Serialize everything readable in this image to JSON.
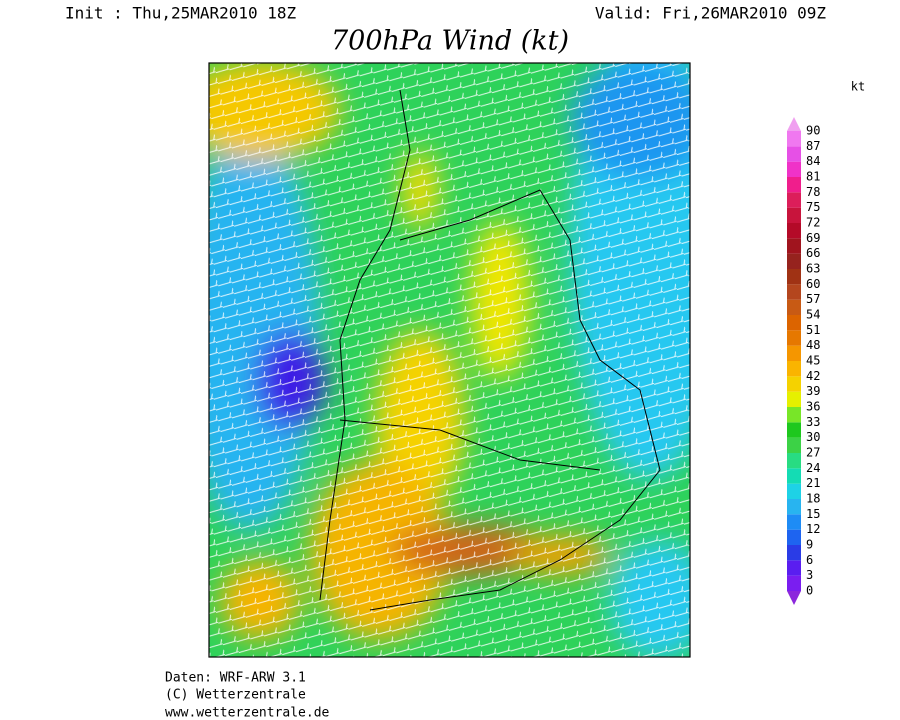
{
  "header": {
    "init": "Init : Thu,25MAR2010 18Z",
    "valid": "Valid: Fri,26MAR2010 09Z",
    "title": "700hPa Wind (kt)"
  },
  "legend": {
    "unit": "kt",
    "levels": [
      0,
      3,
      6,
      9,
      12,
      15,
      18,
      21,
      24,
      27,
      30,
      33,
      36,
      39,
      42,
      45,
      48,
      51,
      54,
      57,
      60,
      63,
      66,
      69,
      72,
      75,
      78,
      81,
      84,
      87,
      90
    ],
    "colors": [
      "#7a1ef0",
      "#5a1ef0",
      "#2a3ce6",
      "#1e64f0",
      "#1e8cf5",
      "#28b4f0",
      "#1ed2e6",
      "#14dcb4",
      "#28dc82",
      "#3cd246",
      "#1ec81e",
      "#78e628",
      "#e6f000",
      "#f5d200",
      "#fab400",
      "#f59600",
      "#e67800",
      "#dc6400",
      "#c85a14",
      "#b4461e",
      "#a03214",
      "#96231e",
      "#a0141e",
      "#b40a28",
      "#c8143c",
      "#dc1e5a",
      "#f01e8c",
      "#f032c8",
      "#e650e6",
      "#f078f0"
    ],
    "under_color": "#8c28dc",
    "over_color": "#f0a0f0"
  },
  "credits": [
    "Daten: WRF-ARW 3.1",
    "(C) Wetterzentrale",
    "www.wetterzentrale.de"
  ]
}
